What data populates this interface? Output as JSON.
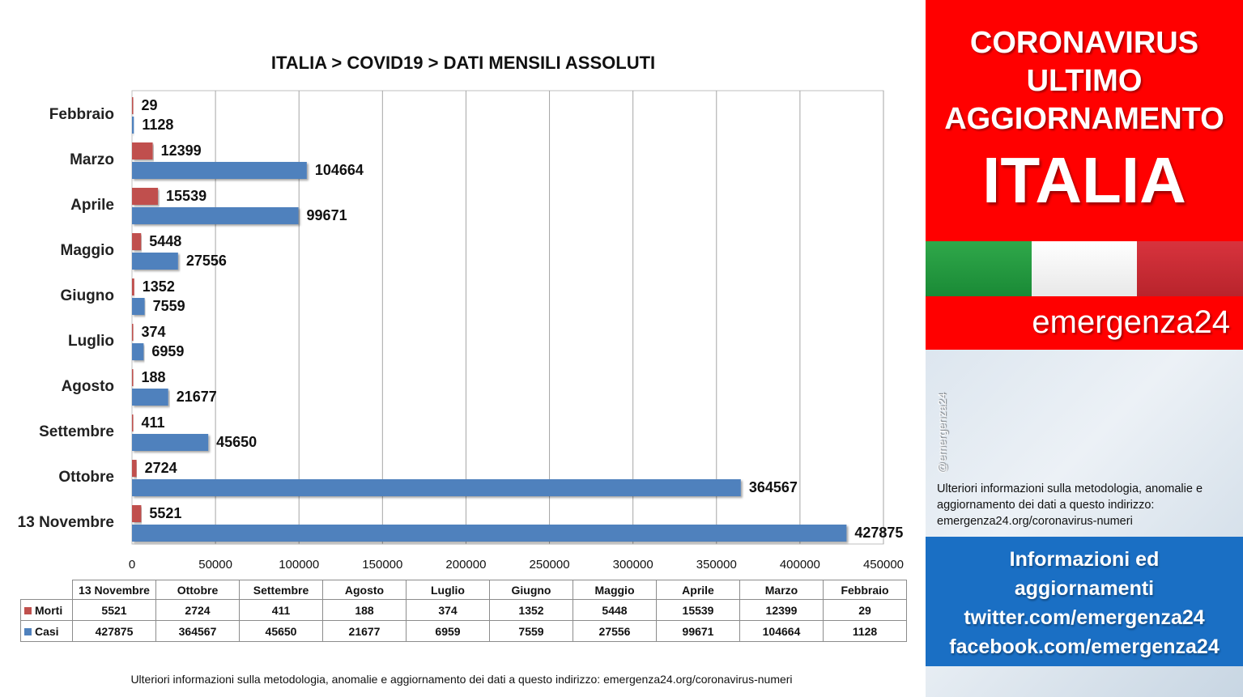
{
  "chart_data": {
    "type": "bar",
    "orientation": "horizontal",
    "title": "ITALIA >  COVID19 > DATI MENSILI  ASSOLUTI",
    "categories": [
      "Febbraio",
      "Marzo",
      "Aprile",
      "Maggio",
      "Giugno",
      "Luglio",
      "Agosto",
      "Settembre",
      "Ottobre",
      "13 Novembre"
    ],
    "series": [
      {
        "name": "Morti",
        "color": "#c0504d",
        "values": [
          29,
          12399,
          15539,
          5448,
          1352,
          374,
          188,
          411,
          2724,
          5521
        ]
      },
      {
        "name": "Casi",
        "color": "#4f81bd",
        "values": [
          1128,
          104664,
          99671,
          27556,
          7559,
          6959,
          21677,
          45650,
          364567,
          427875
        ]
      }
    ],
    "x_ticks": [
      "0",
      "50000",
      "100000",
      "150000",
      "200000",
      "250000",
      "300000",
      "350000",
      "400000",
      "450000"
    ],
    "xlim": [
      0,
      450000
    ],
    "grid": true,
    "legend": "data-table"
  },
  "table": {
    "columns": [
      "13 Novembre",
      "Ottobre",
      "Settembre",
      "Agosto",
      "Luglio",
      "Giugno",
      "Maggio",
      "Aprile",
      "Marzo",
      "Febbraio"
    ],
    "rows": [
      {
        "label": "Morti",
        "color": "#c0504d",
        "values": [
          "5521",
          "2724",
          "411",
          "188",
          "374",
          "1352",
          "5448",
          "15539",
          "12399",
          "29"
        ]
      },
      {
        "label": "Casi",
        "color": "#4f81bd",
        "values": [
          "427875",
          "364567",
          "45650",
          "21677",
          "6959",
          "7559",
          "27556",
          "99671",
          "104664",
          "1128"
        ]
      }
    ]
  },
  "footnote": "Ulteriori informazioni sulla metodologia, anomalie e aggiornamento dei dati a questo indirizzo: emergenza24.org/coronavirus-numeri",
  "panel": {
    "headline_line1": "CORONAVIRUS",
    "headline_line2": "ULTIMO",
    "headline_line3": "AGGIORNAMENTO",
    "country": "ITALIA",
    "brand": "emergenza24",
    "handle": "@emergenza24",
    "info_text": "Ulteriori informazioni sulla metodologia, anomalie e aggiornamento dei dati a questo indirizzo: emergenza24.org/coronavirus-numeri",
    "links_line1": "Informazioni ed",
    "links_line2": "aggiornamenti",
    "links_line3": "twitter.com/emergenza24",
    "links_line4": "facebook.com/emergenza24",
    "colors": {
      "red": "#ff0000",
      "blue": "#1a6fc4",
      "flag_green": "#2fa84a",
      "flag_white": "#ffffff",
      "flag_red": "#d8333d"
    }
  }
}
